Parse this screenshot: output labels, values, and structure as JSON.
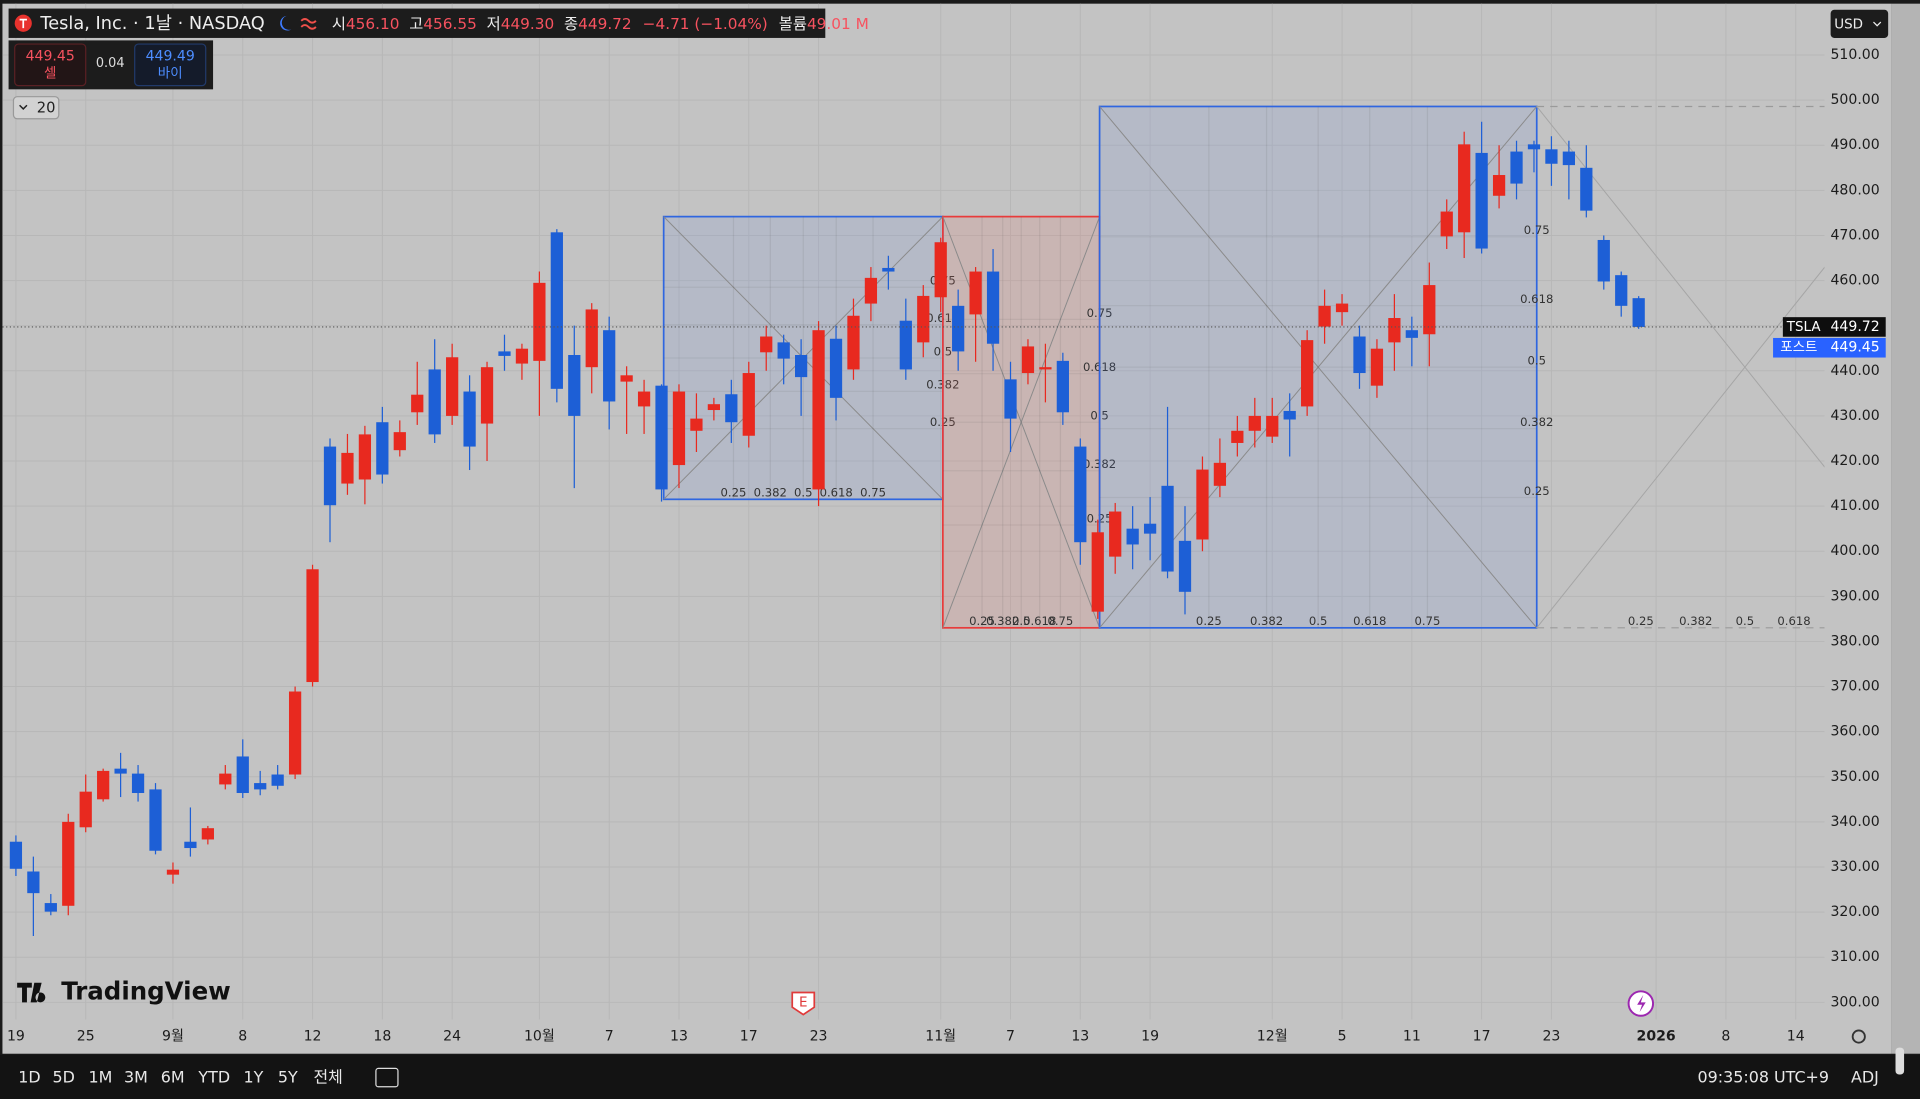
{
  "header": {
    "title": "Tesla, Inc. · 1날 · NASDAQ",
    "fields": [
      {
        "label": "시",
        "value": "456.10"
      },
      {
        "label": "고",
        "value": "456.55"
      },
      {
        "label": "저",
        "value": "449.30"
      },
      {
        "label": "종",
        "value": "449.72"
      }
    ],
    "change": "−4.71 (−1.04%)",
    "volume_label": "볼륨",
    "volume": "49.01 M"
  },
  "quote": {
    "sell": "449.45",
    "sell_label": "셀",
    "spread": "0.04",
    "buy": "449.49",
    "buy_label": "바이"
  },
  "indicator_toggle": "20",
  "currency": "USD",
  "price_tags": [
    {
      "name": "TSLA",
      "value": 449.72
    },
    {
      "name": "포스트",
      "value": 449.45
    }
  ],
  "fib_levels": [
    0.25,
    0.382,
    0.5,
    0.618,
    0.75
  ],
  "brand": "TradingView",
  "earnings_marker": "E",
  "bottom_bar": {
    "ranges": [
      "1D",
      "5D",
      "1M",
      "3M",
      "6M",
      "YTD",
      "1Y",
      "5Y",
      "전체"
    ],
    "clock": "09:35:08 UTC+9",
    "adj": "ADJ"
  },
  "chart_data": {
    "type": "candlestick",
    "up_color": "#e8291f",
    "down_color": "#1d5fd6",
    "grid": true,
    "categories": [
      "19",
      null,
      null,
      null,
      "25",
      null,
      null,
      null,
      null,
      "9월",
      null,
      null,
      null,
      "8",
      null,
      null,
      null,
      "12",
      null,
      null,
      null,
      "18",
      null,
      null,
      null,
      "24",
      null,
      null,
      null,
      null,
      "10월",
      null,
      null,
      null,
      "7",
      null,
      null,
      null,
      "13",
      null,
      null,
      null,
      "17",
      null,
      null,
      null,
      "23",
      null,
      null,
      null,
      null,
      null,
      null,
      "11월",
      null,
      null,
      null,
      "7",
      null,
      null,
      null,
      "13",
      null,
      null,
      null,
      "19",
      null,
      null,
      null,
      null,
      null,
      null,
      "12월",
      null,
      null,
      null,
      "5",
      null,
      null,
      null,
      "11",
      null,
      null,
      null,
      "17",
      null,
      null,
      null,
      "23",
      null,
      null,
      null,
      null,
      null,
      "2026",
      null,
      null,
      null,
      "8",
      null,
      null,
      null,
      "14",
      null
    ],
    "open": [
      335.6,
      329,
      322,
      321.4,
      338.8,
      345,
      351.8,
      350.7,
      347.2,
      328.3,
      335.6,
      336.1,
      348.3,
      354.5,
      348.6,
      350.5,
      350.5,
      371,
      423.2,
      415,
      415.9,
      428.6,
      422.4,
      430.8,
      440.3,
      430,
      435.4,
      428.3,
      444.3,
      441.6,
      442.2,
      470.7,
      443.5,
      440.8,
      449,
      437.6,
      432.1,
      436.7,
      419.1,
      426.7,
      431.3,
      434.8,
      425.6,
      444.1,
      446.3,
      443.5,
      413.7,
      447.1,
      440.3,
      454.9,
      462.8,
      451.1,
      446.3,
      456.3,
      454.4,
      452.5,
      462,
      438.1,
      439.5,
      440.3,
      442.2,
      423.2,
      386.6,
      398.8,
      405,
      406.1,
      414.5,
      402.3,
      402.6,
      414.5,
      424,
      426.7,
      425.4,
      431.1,
      432.1,
      449.8,
      453,
      447.6,
      436.7,
      446.3,
      449,
      448.1,
      469.8,
      470.7,
      488.3,
      478.8,
      488.6,
      490.2,
      489.1,
      488.6,
      485,
      469,
      461.2,
      456.1,
      null,
      null,
      null,
      null,
      null,
      null,
      null,
      null,
      null,
      null
    ],
    "high": [
      337,
      332.3,
      324,
      341.8,
      350.5,
      351.8,
      355.3,
      352.6,
      348.6,
      331,
      343.2,
      339.1,
      352.6,
      358.3,
      351.3,
      352.6,
      370,
      397,
      425,
      426,
      427.8,
      432,
      429,
      442,
      447,
      446,
      439,
      442,
      448,
      446,
      462,
      471.4,
      450,
      455,
      452,
      441,
      438,
      437,
      437,
      435,
      434,
      438,
      442,
      450,
      448,
      447,
      451,
      450,
      456,
      463,
      465.5,
      456,
      459,
      469.5,
      458,
      463,
      467,
      442,
      447,
      446,
      444,
      425,
      407,
      410.7,
      410,
      412,
      432,
      410,
      421,
      425,
      430,
      434,
      434,
      435,
      449,
      458,
      457,
      450,
      447,
      457,
      452,
      464,
      478,
      493,
      495.2,
      490,
      491,
      491,
      492,
      491,
      490,
      470,
      462,
      456.55,
      null,
      null,
      null,
      null,
      null,
      null,
      null,
      null,
      null,
      null
    ],
    "low": [
      328,
      314.7,
      319.3,
      319.3,
      337.7,
      344.5,
      345.5,
      344.5,
      332.8,
      326.3,
      332.3,
      335,
      347.2,
      345.3,
      345.9,
      347.2,
      349.5,
      370,
      402,
      412.5,
      410.4,
      415,
      421,
      428,
      424,
      428,
      418,
      420,
      440,
      438,
      430,
      433,
      414,
      435,
      427,
      426,
      426,
      411,
      414,
      422,
      429,
      424,
      423,
      440,
      437,
      430,
      410,
      429,
      438,
      451,
      458,
      438,
      443,
      453,
      440,
      442,
      440,
      422,
      437,
      433,
      428,
      397,
      385,
      395,
      396,
      398,
      394,
      386,
      400,
      412,
      421,
      423,
      424,
      421,
      430,
      446,
      450,
      436,
      434,
      440,
      441,
      441,
      467,
      465,
      466,
      476,
      478,
      484,
      481,
      478,
      474,
      458,
      452,
      449.3,
      null,
      null,
      null,
      null,
      null,
      null,
      null,
      null,
      null,
      null
    ],
    "close": [
      329.6,
      324.2,
      320.1,
      340,
      346.7,
      351.3,
      350.7,
      346.4,
      333.6,
      329.4,
      334.2,
      338.6,
      350.7,
      346.4,
      347.2,
      348,
      368.9,
      396,
      410.2,
      421.8,
      425.9,
      417,
      426.4,
      434.7,
      425.9,
      443,
      423.2,
      440.8,
      443.3,
      444.9,
      459.5,
      436,
      430,
      453.6,
      433.2,
      439,
      435.4,
      413.7,
      435.4,
      429.4,
      432.6,
      428.6,
      439.5,
      447.6,
      442.7,
      438.6,
      449,
      434,
      452.2,
      460.6,
      462,
      440.3,
      456.6,
      468.5,
      444.3,
      462,
      446,
      429.4,
      445.4,
      440.8,
      430.8,
      402,
      404.2,
      408.8,
      401.5,
      403.9,
      395.5,
      391,
      418.1,
      419.6,
      426.7,
      430,
      430,
      429.2,
      446.8,
      454.4,
      454.9,
      439.5,
      444.9,
      451.7,
      447.3,
      459,
      475.3,
      490.2,
      467.1,
      483.4,
      481.5,
      489.1,
      485.9,
      485.6,
      475.5,
      459.8,
      454.4,
      449.72,
      null,
      null,
      null,
      null,
      null,
      null,
      null,
      null,
      null,
      null
    ],
    "ylim": [
      296.2,
      522.2
    ],
    "yticks": [
      {
        "value": 300,
        "label": "300.00"
      },
      {
        "value": 310,
        "label": "310.00"
      },
      {
        "value": 320,
        "label": "320.00"
      },
      {
        "value": 330,
        "label": "330.00"
      },
      {
        "value": 340,
        "label": "340.00"
      },
      {
        "value": 350,
        "label": "350.00"
      },
      {
        "value": 360,
        "label": "360.00"
      },
      {
        "value": 370,
        "label": "370.00"
      },
      {
        "value": 380,
        "label": "380.00"
      },
      {
        "value": 390,
        "label": "390.00"
      },
      {
        "value": 400,
        "label": "400.00"
      },
      {
        "value": 410,
        "label": "410.00"
      },
      {
        "value": 420,
        "label": "420.00"
      },
      {
        "value": 430,
        "label": "430.00"
      },
      {
        "value": 440,
        "label": "440.00"
      },
      {
        "value": 450,
        "label": "450.00"
      },
      {
        "value": 460,
        "label": "460.00"
      },
      {
        "value": 470,
        "label": "470.00"
      },
      {
        "value": 480,
        "label": "480.00"
      },
      {
        "value": 490,
        "label": "490.00"
      },
      {
        "value": 500,
        "label": "500.00"
      },
      {
        "value": 510,
        "label": "510.00"
      }
    ]
  }
}
